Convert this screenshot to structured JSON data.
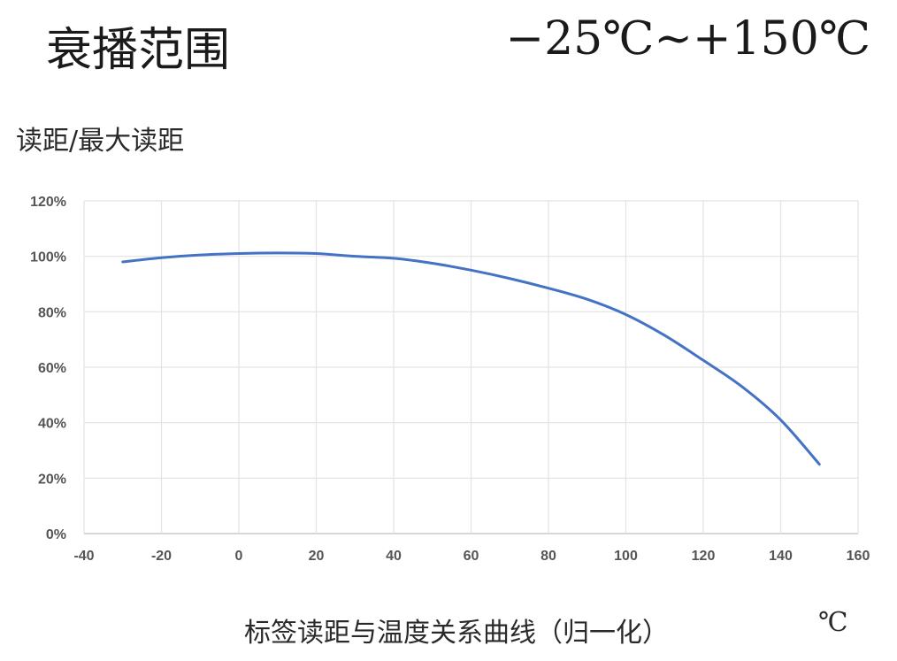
{
  "header": {
    "title": "衰播范围",
    "temp_range": "−25℃~+150℃"
  },
  "chart_data": {
    "type": "line",
    "title": "",
    "ylabel": "读距/最大读距",
    "xlabel": "标签读距与温度关系曲线（归一化）",
    "xunit": "℃",
    "xlim": [
      -40,
      160
    ],
    "ylim": [
      0,
      120
    ],
    "xticks": [
      "-40",
      "-20",
      "0",
      "20",
      "40",
      "60",
      "80",
      "100",
      "120",
      "140",
      "160"
    ],
    "yticks": [
      "0%",
      "20%",
      "40%",
      "60%",
      "80%",
      "100%",
      "120%"
    ],
    "grid": true,
    "series": [
      {
        "color": "#4472C4",
        "x": [
          -30,
          -20,
          -10,
          0,
          10,
          20,
          30,
          40,
          50,
          60,
          70,
          80,
          90,
          100,
          110,
          120,
          130,
          140,
          150
        ],
        "y": [
          98,
          99.5,
          100.5,
          101,
          101.2,
          101,
          100,
          99.3,
          97.5,
          95,
          92,
          88.5,
          84.5,
          79,
          71.5,
          62.5,
          53,
          41,
          25
        ]
      }
    ]
  }
}
